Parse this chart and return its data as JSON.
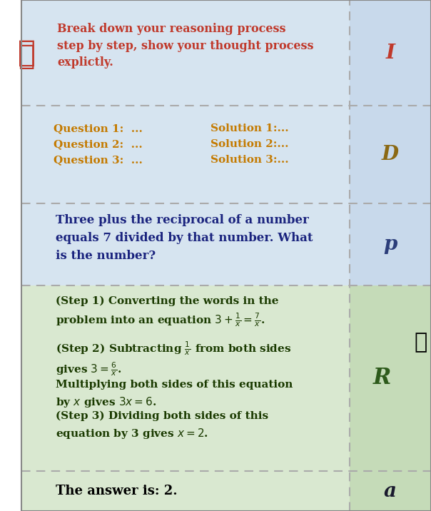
{
  "fig_width": 6.04,
  "fig_height": 7.16,
  "bg_color": "#ffffff",
  "top_section_color": "#d6e4f0",
  "bottom_section_color": "#d9e8d0",
  "dashed_line_color": "#aaaaaa",
  "right_panel_color_top": "#c8d9eb",
  "right_panel_color_bottom": "#c5dbb8",
  "instruction_text": "Break down your reasoning process\nstep by step, show your thought process\nexplictly.",
  "instruction_color": "#c0392b",
  "label_I": "I",
  "label_I_color": "#c0392b",
  "label_D": "D",
  "label_D_color": "#8b6914",
  "label_p": "p",
  "label_p_color": "#2c3e7a",
  "label_R": "R",
  "label_R_color": "#2d5a1b",
  "label_a": "a",
  "label_a_color": "#1a1a2e",
  "demo_q1": "Question 1:  ...",
  "demo_q2": "Question 2:  ...",
  "demo_q3": "Question 3:  ...",
  "demo_s1": "Solution 1:...",
  "demo_s2": "Solution 2:...",
  "demo_s3": "Solution 3:...",
  "demo_color": "#c47a00",
  "problem_text": "Three plus the reciprocal of a number\nequals 7 divided by that number. What\nis the number?",
  "problem_color": "#1a237e",
  "response_line1": "(Step 1) Converting the words in the",
  "response_color": "#1a3a00",
  "answer_text": "The answer is: 2.",
  "answer_color": "#000000"
}
